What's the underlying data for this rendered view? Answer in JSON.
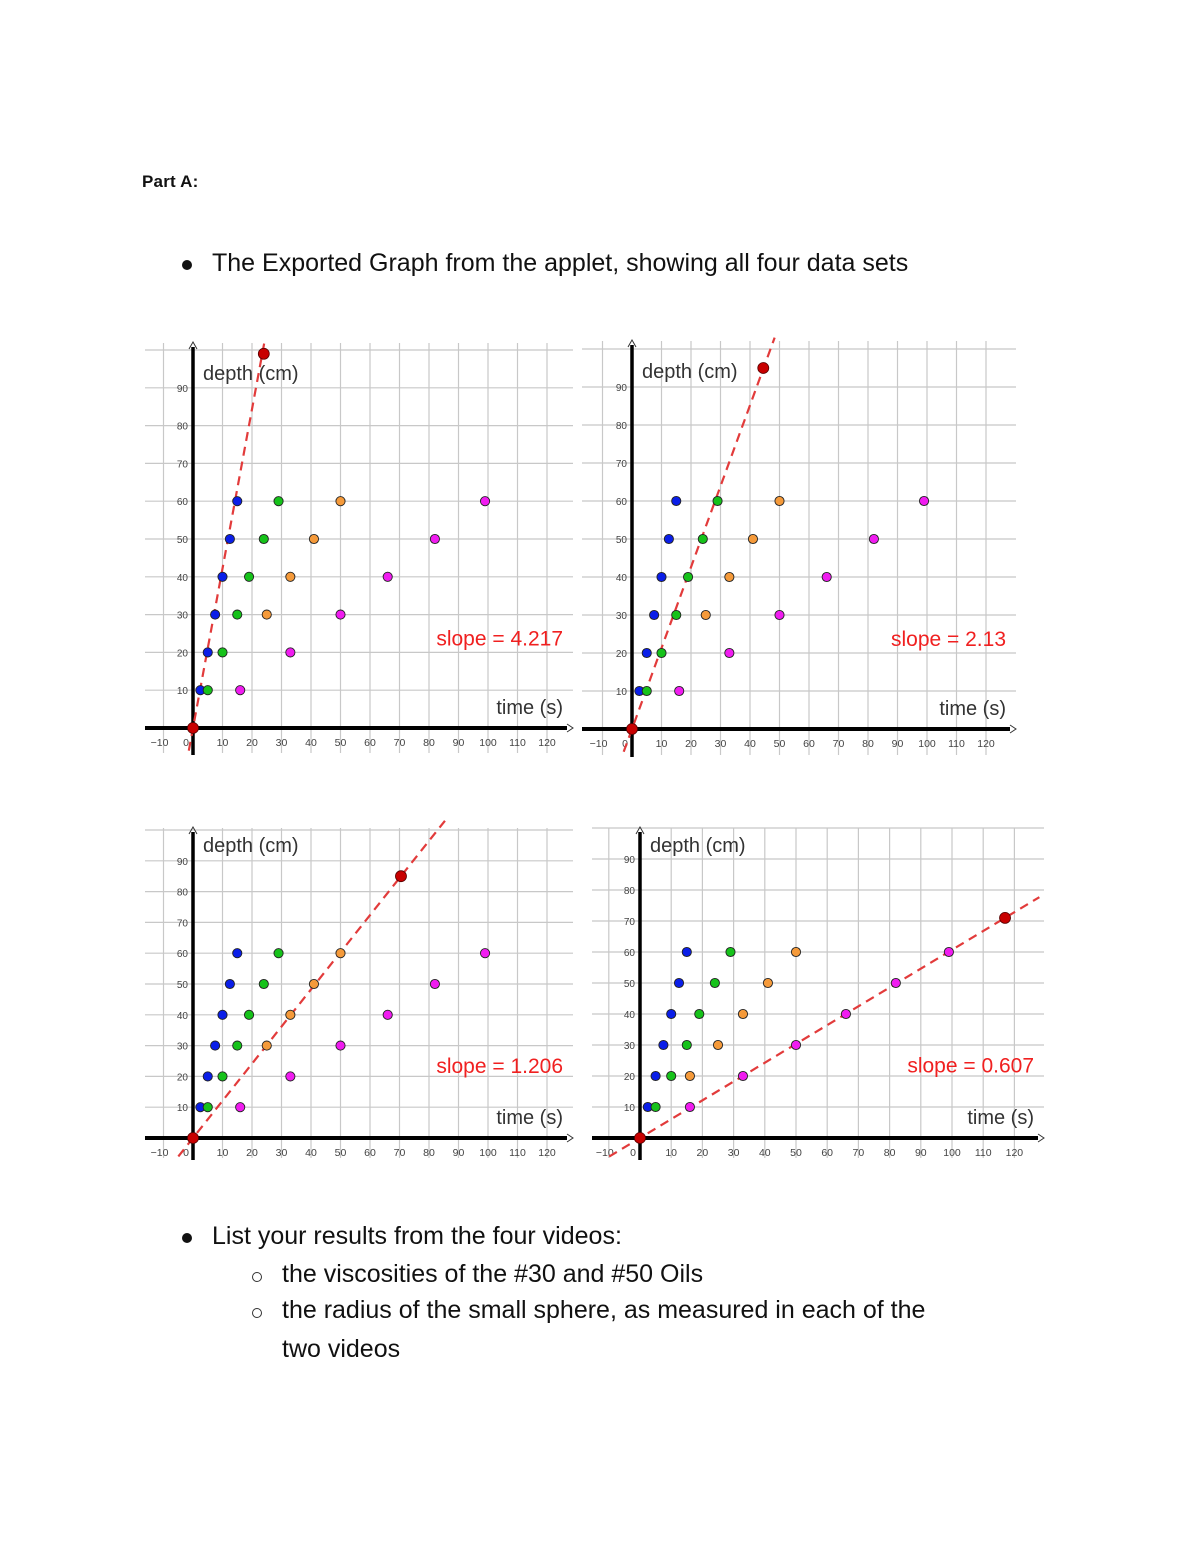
{
  "document": {
    "heading": "Part A:",
    "bullet1": "The Exported Graph from the applet, showing all four data sets",
    "bullet2": "List your results from the four videos:",
    "sub1": "the viscosities of the #30 and #50 Oils",
    "sub2_line1": "the radius of the small sphere, as measured in each of the",
    "sub2_line2": "two videos"
  },
  "colors": {
    "blue": "#0a1ee8",
    "green": "#16c21a",
    "orange": "#f59a3a",
    "magenta": "#f01cf0",
    "fit": "#e23b3b",
    "fit_point": "#c80000",
    "slope_text": "#f02020",
    "grid": "#c8c8c8"
  },
  "chart_data": [
    {
      "type": "scatter",
      "title": "",
      "xlabel": "time (s)",
      "ylabel": "depth (cm)",
      "xlim": [
        -12,
        128
      ],
      "ylim": [
        -7,
        100
      ],
      "x_ticks": [
        -10,
        0,
        10,
        20,
        30,
        40,
        50,
        60,
        70,
        80,
        90,
        100,
        110,
        120
      ],
      "y_ticks": [
        10,
        20,
        30,
        40,
        50,
        60,
        70,
        80,
        90
      ],
      "grid": true,
      "annotation": "slope = 4.217",
      "series": [
        {
          "name": "blue",
          "x": [
            2.5,
            5,
            7.5,
            10,
            12.5,
            15
          ],
          "y": [
            10,
            20,
            30,
            40,
            50,
            60
          ]
        },
        {
          "name": "green",
          "x": [
            5,
            10,
            15,
            19,
            24,
            29
          ],
          "y": [
            10,
            20,
            30,
            40,
            50,
            60
          ]
        },
        {
          "name": "orange",
          "x": [
            25,
            33,
            41,
            50
          ],
          "y": [
            30,
            40,
            50,
            60
          ]
        },
        {
          "name": "magenta",
          "x": [
            16,
            33,
            50,
            66,
            82,
            99
          ],
          "y": [
            10,
            20,
            30,
            40,
            50,
            60
          ]
        }
      ],
      "fit_line": {
        "slope": 4.217,
        "x0": 0,
        "y0": 0,
        "x1": 24,
        "y1": 99
      }
    },
    {
      "type": "scatter",
      "title": "",
      "xlabel": "time (s)",
      "ylabel": "depth (cm)",
      "xlim": [
        -12,
        128
      ],
      "ylim": [
        -7,
        100
      ],
      "x_ticks": [
        -10,
        0,
        10,
        20,
        30,
        40,
        50,
        60,
        70,
        80,
        90,
        100,
        110,
        120
      ],
      "y_ticks": [
        10,
        20,
        30,
        40,
        50,
        60,
        70,
        80,
        90
      ],
      "grid": true,
      "annotation": "slope = 2.13",
      "series": [
        {
          "name": "blue",
          "x": [
            2.5,
            5,
            7.5,
            10,
            12.5,
            15
          ],
          "y": [
            10,
            20,
            30,
            40,
            50,
            60
          ]
        },
        {
          "name": "green",
          "x": [
            5,
            10,
            15,
            19,
            24,
            29
          ],
          "y": [
            10,
            20,
            30,
            40,
            50,
            60
          ]
        },
        {
          "name": "orange",
          "x": [
            25,
            33,
            41,
            50
          ],
          "y": [
            30,
            40,
            50,
            60
          ]
        },
        {
          "name": "magenta",
          "x": [
            16,
            33,
            50,
            66,
            82,
            99
          ],
          "y": [
            10,
            20,
            30,
            40,
            50,
            60
          ]
        }
      ],
      "fit_line": {
        "slope": 2.13,
        "x0": 0,
        "y0": 0,
        "x1": 44.5,
        "y1": 95
      }
    },
    {
      "type": "scatter",
      "title": "",
      "xlabel": "time (s)",
      "ylabel": "depth (cm)",
      "xlim": [
        -12,
        128
      ],
      "ylim": [
        -7,
        100
      ],
      "x_ticks": [
        -10,
        0,
        10,
        20,
        30,
        40,
        50,
        60,
        70,
        80,
        90,
        100,
        110,
        120
      ],
      "y_ticks": [
        10,
        20,
        30,
        40,
        50,
        60,
        70,
        80,
        90
      ],
      "grid": true,
      "annotation": "slope = 1.206",
      "series": [
        {
          "name": "blue",
          "x": [
            2.5,
            5,
            7.5,
            10,
            12.5,
            15
          ],
          "y": [
            10,
            20,
            30,
            40,
            50,
            60
          ]
        },
        {
          "name": "green",
          "x": [
            5,
            10,
            15,
            19,
            24,
            29
          ],
          "y": [
            10,
            20,
            30,
            40,
            50,
            60
          ]
        },
        {
          "name": "orange",
          "x": [
            25,
            33,
            41,
            50
          ],
          "y": [
            30,
            40,
            50,
            60
          ]
        },
        {
          "name": "magenta",
          "x": [
            16,
            33,
            50,
            66,
            82,
            99
          ],
          "y": [
            10,
            20,
            30,
            40,
            50,
            60
          ]
        }
      ],
      "fit_line": {
        "slope": 1.206,
        "x0": 0,
        "y0": 0,
        "x1": 70.5,
        "y1": 85
      }
    },
    {
      "type": "scatter",
      "title": "",
      "xlabel": "time (s)",
      "ylabel": "depth (cm)",
      "xlim": [
        -12,
        128
      ],
      "ylim": [
        -7,
        100
      ],
      "x_ticks": [
        -10,
        0,
        10,
        20,
        30,
        40,
        50,
        60,
        70,
        80,
        90,
        100,
        110,
        120
      ],
      "y_ticks": [
        10,
        20,
        30,
        40,
        50,
        60,
        70,
        80,
        90
      ],
      "grid": true,
      "annotation": "slope = 0.607",
      "series": [
        {
          "name": "blue",
          "x": [
            2.5,
            5,
            7.5,
            10,
            12.5,
            15
          ],
          "y": [
            10,
            20,
            30,
            40,
            50,
            60
          ]
        },
        {
          "name": "green",
          "x": [
            5,
            10,
            15,
            19,
            24,
            29
          ],
          "y": [
            10,
            20,
            30,
            40,
            50,
            60
          ]
        },
        {
          "name": "orange",
          "x": [
            16,
            25,
            33,
            41,
            50
          ],
          "y": [
            20,
            30,
            40,
            50,
            60
          ]
        },
        {
          "name": "magenta",
          "x": [
            16,
            33,
            50,
            66,
            82,
            99
          ],
          "y": [
            10,
            20,
            30,
            40,
            50,
            60
          ]
        }
      ],
      "fit_line": {
        "slope": 0.607,
        "x0": 0,
        "y0": 0,
        "x1": 117,
        "y1": 71
      }
    }
  ]
}
